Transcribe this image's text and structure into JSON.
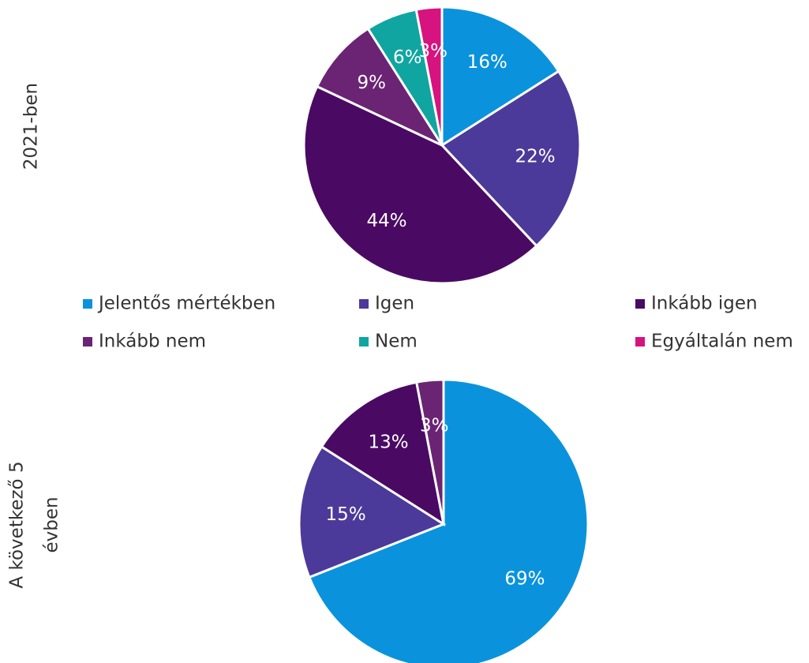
{
  "legend": {
    "labels": [
      "Jelentős mértékben",
      "Igen",
      "Inkább igen",
      "Inkább nem",
      "Nem",
      "Egyáltalán nem"
    ],
    "colors": [
      "#0a93dc",
      "#4b3a9a",
      "#4a0a63",
      "#6b2474",
      "#10a5a0",
      "#d6137e"
    ]
  },
  "chart_data": [
    {
      "type": "pie",
      "title": [
        "2021-ben"
      ],
      "values": [
        16,
        22,
        44,
        9,
        6,
        3
      ],
      "value_labels": [
        "16%",
        "22%",
        "44%",
        "9%",
        "6%",
        "3%"
      ]
    },
    {
      "type": "pie",
      "title": [
        "A következő 5",
        "évben"
      ],
      "values": [
        69,
        15,
        13,
        3
      ],
      "value_labels": [
        "69%",
        "15%",
        "13%",
        "3%"
      ]
    }
  ]
}
